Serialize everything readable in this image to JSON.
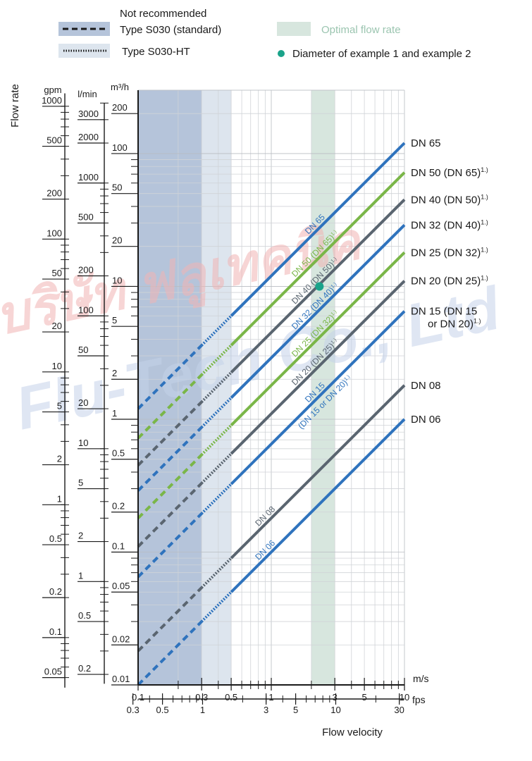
{
  "legend": {
    "not_recommended": "Not recommended",
    "type_standard": "Type S030 (standard)",
    "type_ht": "Type S030-HT",
    "optimal": "Optimal flow rate",
    "example": "Diameter of example 1 and example 2"
  },
  "colors": {
    "blue": "#2f73bd",
    "green": "#7ab648",
    "gray": "#5a6570",
    "not_recommended_band": "#b5c4da",
    "ht_band": "#dde5ee",
    "optimal_band": "#d7e6de",
    "example_dot": "#1aa38a",
    "watermark_red": "#f2b4b4",
    "watermark_blue": "#c5d3ea"
  },
  "watermark": {
    "line1": "บริษัท ฟลูเทคนิค",
    "line2": "Flu-Tech Co., Ltd"
  },
  "axes": {
    "flow_rate_title": "Flow rate",
    "flow_velocity_title": "Flow velocity",
    "gpm_unit": "gpm",
    "lmin_unit": "l/min",
    "m3h_unit": "m³/h",
    "ms_unit": "m/s",
    "fps_unit": "fps",
    "m3h_ticks": [
      "200",
      "100",
      "50",
      "20",
      "10",
      "5",
      "2",
      "1",
      "0.5",
      "0.2",
      "0.1",
      "0.05",
      "0.02",
      "0.01"
    ],
    "lmin_ticks": [
      "3000",
      "2000",
      "1000",
      "500",
      "200",
      "100",
      "50",
      "20",
      "10",
      "5",
      "2",
      "1",
      "0.5",
      "0.2"
    ],
    "gpm_ticks": [
      "1000",
      "500",
      "200",
      "100",
      "50",
      "20",
      "10",
      "5",
      "2",
      "1",
      "0.5",
      "0.2",
      "0.1",
      "0.05"
    ],
    "ms_ticks": [
      "0.1",
      "0.3",
      "0.5",
      "1",
      "3",
      "5",
      "10"
    ],
    "fps_ticks": [
      "0.3",
      "0.5",
      "1",
      "3",
      "5",
      "10",
      "30"
    ]
  },
  "chart_data": {
    "type": "line",
    "x_scale": "log",
    "y_scale": "log",
    "xlabel": "Flow velocity",
    "ylabel": "Flow rate",
    "x_unit": "m/s",
    "y_unit": "m³/h",
    "xlim": [
      0.1,
      10
    ],
    "ylim": [
      0.01,
      300
    ],
    "grid": true,
    "bands": [
      {
        "label": "Not recommended",
        "x_range": [
          0.1,
          0.3
        ]
      },
      {
        "label": "Type S030-HT",
        "x_range": [
          0.3,
          0.5
        ]
      },
      {
        "label": "Optimal flow rate",
        "x_range": [
          2,
          3
        ]
      }
    ],
    "series": [
      {
        "name": "DN 65",
        "label": "DN 65",
        "diag_label": "DN 65",
        "color": "blue",
        "x": [
          0.1,
          10
        ],
        "y": [
          1.2,
          120
        ]
      },
      {
        "name": "DN 50 (DN 65)",
        "label": "DN 50 (DN 65)",
        "note": "1.)",
        "diag_label": "DN 50 (DN 65)",
        "diag_note": "1.)",
        "color": "green",
        "x": [
          0.1,
          10
        ],
        "y": [
          0.72,
          72
        ]
      },
      {
        "name": "DN 40 (DN 50)",
        "label": "DN 40 (DN 50)",
        "note": "1.)",
        "diag_label": "DN 40 (DN 50)",
        "diag_note": "1.)",
        "color": "gray",
        "x": [
          0.1,
          10
        ],
        "y": [
          0.45,
          45
        ]
      },
      {
        "name": "DN 32 (DN 40)",
        "label": "DN 32 (DN 40)",
        "note": "1.)",
        "diag_label": "DN 32 (DN 40)",
        "diag_note": "1.)",
        "color": "blue",
        "x": [
          0.1,
          10
        ],
        "y": [
          0.29,
          29
        ]
      },
      {
        "name": "DN 25 (DN 32)",
        "label": "DN 25 (DN 32)",
        "note": "1.)",
        "diag_label": "DN 25 (DN 32)",
        "diag_note": "1.)",
        "color": "green",
        "x": [
          0.1,
          10
        ],
        "y": [
          0.18,
          18
        ]
      },
      {
        "name": "DN 20 (DN 25)",
        "label": "DN 20 (DN 25)",
        "note": "1.)",
        "diag_label": "DN 20 (DN 25)",
        "diag_note": "1.)",
        "color": "gray",
        "x": [
          0.1,
          10
        ],
        "y": [
          0.11,
          11
        ]
      },
      {
        "name": "DN 15 (DN 15 or DN 20)",
        "label": "DN 15  (DN 15",
        "label2": "or DN 20)",
        "note": "1.)",
        "diag_label": "DN 15",
        "diag_label2": "(DN 15 or DN 20)",
        "diag_note": "1.)",
        "color": "blue",
        "x": [
          0.1,
          10
        ],
        "y": [
          0.065,
          6.5
        ]
      },
      {
        "name": "DN 08",
        "label": "DN 08",
        "diag_label": "DN 08",
        "color": "gray",
        "x": [
          0.1,
          10
        ],
        "y": [
          0.018,
          1.8
        ]
      },
      {
        "name": "DN 06",
        "label": "DN 06",
        "diag_label": "DN 06",
        "color": "blue",
        "x": [
          0.1,
          10
        ],
        "y": [
          0.01,
          1.0
        ]
      }
    ],
    "example_point": {
      "x": 2.3,
      "y": 10
    }
  }
}
